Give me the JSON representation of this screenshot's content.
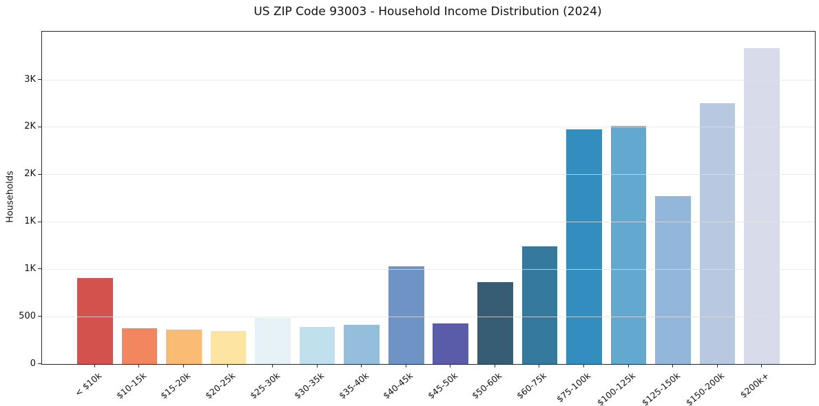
{
  "figure": {
    "background": "#ffffff"
  },
  "chart_data": {
    "type": "bar",
    "title": "US ZIP Code 93003 - Household Income Distribution (2024)",
    "xlabel": "",
    "ylabel": "Households",
    "categories": [
      "< $10k",
      "$10-15k",
      "$15-20k",
      "$20-25k",
      "$25-30k",
      "$30-35k",
      "$35-40k",
      "$40-45k",
      "$45-50k",
      "$50-60k",
      "$60-75k",
      "$75-100k",
      "$100-125k",
      "$125-150k",
      "$150-200k",
      "$200k+"
    ],
    "values": [
      905,
      375,
      360,
      347,
      490,
      395,
      415,
      1030,
      428,
      862,
      1242,
      2478,
      2518,
      1770,
      2757,
      3338
    ],
    "bar_colors": [
      "#d4524e",
      "#f2875f",
      "#fabc75",
      "#fde4a3",
      "#e6f2f5",
      "#c0e0ee",
      "#94bedb",
      "#6d94c5",
      "#5a5caa",
      "#365d73",
      "#35799f",
      "#338dbf",
      "#62a8cf",
      "#93b7db",
      "#b9c8e1",
      "#d8dbe9"
    ],
    "ylim": [
      0,
      3510
    ],
    "yticks": [
      {
        "value": 0,
        "label": "0"
      },
      {
        "value": 500,
        "label": "500"
      },
      {
        "value": 1000,
        "label": "1K"
      },
      {
        "value": 1500,
        "label": "1K"
      },
      {
        "value": 2000,
        "label": "2K"
      },
      {
        "value": 2500,
        "label": "2K"
      },
      {
        "value": 3000,
        "label": "3K"
      }
    ],
    "grid": "horizontal",
    "legend": "none",
    "axis_color": "#262626",
    "grid_color": "rgba(226,226,232,0.75)",
    "x_tick_rotation_deg": 40
  }
}
